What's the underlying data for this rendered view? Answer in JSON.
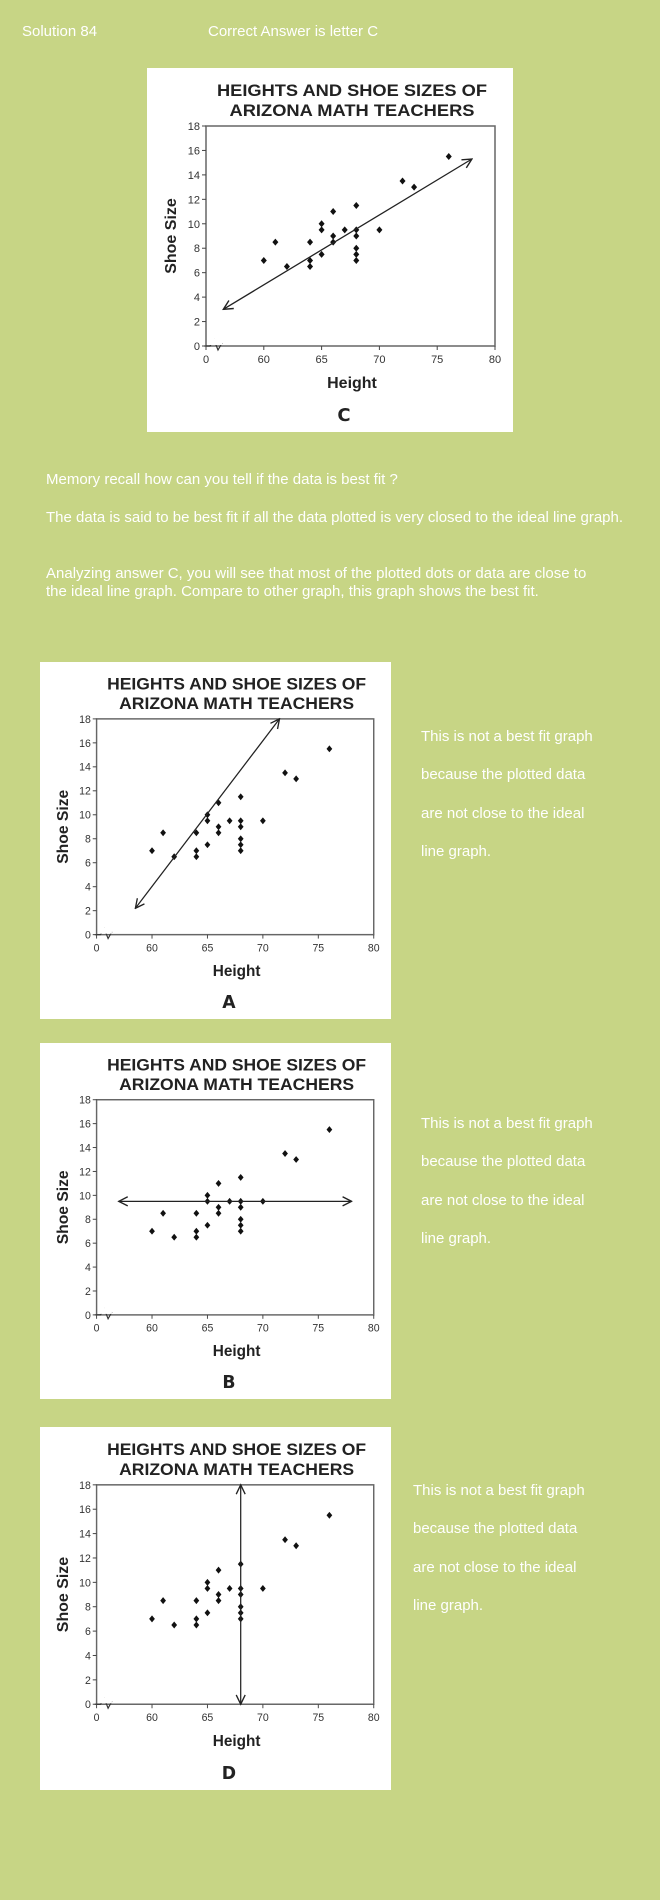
{
  "header": {
    "solution": "Solution  84",
    "answer": "Correct Answer is letter C"
  },
  "explanation": {
    "question": "Memory recall how can you tell if the data is best fit ?",
    "definition": "The data is said to be best fit if all the data plotted is very closed to the ideal line graph.",
    "analysis": "Analyzing answer C, you will see that most of the plotted dots or data are close to the ideal line graph. Compare to other graph, this graph shows the best fit."
  },
  "side_note_lines": [
    "This is not a best fit graph",
    "because the plotted data",
    "are not close to the ideal",
    "line graph."
  ],
  "chart_data": [
    {
      "id": "C",
      "type": "scatter",
      "label": "C",
      "title": [
        "HEIGHTS AND SHOE SIZES OF",
        "ARIZONA MATH TEACHERS"
      ],
      "xlabel": "Height",
      "ylabel": "Shoe Size",
      "xticks": [
        "0",
        "60",
        "65",
        "70",
        "75",
        "80"
      ],
      "yticks": [
        "0",
        "2",
        "4",
        "6",
        "8",
        "10",
        "12",
        "14",
        "16",
        "18"
      ],
      "xlim": [
        55,
        80
      ],
      "ylim": [
        0,
        18
      ],
      "x_axis_break": true,
      "points": [
        [
          60,
          7
        ],
        [
          61,
          8.5
        ],
        [
          62,
          6.5
        ],
        [
          64,
          8.5
        ],
        [
          64,
          7
        ],
        [
          64,
          6.5
        ],
        [
          65,
          10
        ],
        [
          65,
          9.5
        ],
        [
          65,
          7.5
        ],
        [
          66,
          11
        ],
        [
          66,
          9
        ],
        [
          66,
          8.5
        ],
        [
          67,
          9.5
        ],
        [
          68,
          11.5
        ],
        [
          68,
          9.5
        ],
        [
          68,
          9
        ],
        [
          68,
          8
        ],
        [
          68,
          7.5
        ],
        [
          68,
          7
        ],
        [
          70,
          9.5
        ],
        [
          72,
          13.5
        ],
        [
          73,
          13
        ],
        [
          76,
          15.5
        ]
      ],
      "fit_line": [
        [
          56.5,
          3
        ],
        [
          78,
          15.3
        ]
      ]
    },
    {
      "id": "A",
      "type": "scatter",
      "label": "A",
      "title": [
        "HEIGHTS AND SHOE SIZES OF",
        "ARIZONA MATH TEACHERS"
      ],
      "xlabel": "Height",
      "ylabel": "Shoe Size",
      "xticks": [
        "0",
        "60",
        "65",
        "70",
        "75",
        "80"
      ],
      "yticks": [
        "0",
        "2",
        "4",
        "6",
        "8",
        "10",
        "12",
        "14",
        "16",
        "18"
      ],
      "xlim": [
        55,
        80
      ],
      "ylim": [
        0,
        18
      ],
      "x_axis_break": true,
      "points": [
        [
          60,
          7
        ],
        [
          61,
          8.5
        ],
        [
          62,
          6.5
        ],
        [
          64,
          8.5
        ],
        [
          64,
          7
        ],
        [
          64,
          6.5
        ],
        [
          65,
          10
        ],
        [
          65,
          9.5
        ],
        [
          65,
          7.5
        ],
        [
          66,
          11
        ],
        [
          66,
          9
        ],
        [
          66,
          8.5
        ],
        [
          67,
          9.5
        ],
        [
          68,
          11.5
        ],
        [
          68,
          9.5
        ],
        [
          68,
          9
        ],
        [
          68,
          8
        ],
        [
          68,
          7.5
        ],
        [
          68,
          7
        ],
        [
          70,
          9.5
        ],
        [
          72,
          13.5
        ],
        [
          73,
          13
        ],
        [
          76,
          15.5
        ]
      ],
      "fit_line": [
        [
          58.5,
          2.2
        ],
        [
          71.5,
          18
        ]
      ],
      "note": "side_note_lines"
    },
    {
      "id": "B",
      "type": "scatter",
      "label": "B",
      "title": [
        "HEIGHTS AND SHOE SIZES OF",
        "ARIZONA MATH TEACHERS"
      ],
      "xlabel": "Height",
      "ylabel": "Shoe Size",
      "xticks": [
        "0",
        "60",
        "65",
        "70",
        "75",
        "80"
      ],
      "yticks": [
        "0",
        "2",
        "4",
        "6",
        "8",
        "10",
        "12",
        "14",
        "16",
        "18"
      ],
      "xlim": [
        55,
        80
      ],
      "ylim": [
        0,
        18
      ],
      "x_axis_break": true,
      "points": [
        [
          60,
          7
        ],
        [
          61,
          8.5
        ],
        [
          62,
          6.5
        ],
        [
          64,
          8.5
        ],
        [
          64,
          7
        ],
        [
          64,
          6.5
        ],
        [
          65,
          10
        ],
        [
          65,
          9.5
        ],
        [
          65,
          7.5
        ],
        [
          66,
          11
        ],
        [
          66,
          9
        ],
        [
          66,
          8.5
        ],
        [
          67,
          9.5
        ],
        [
          68,
          11.5
        ],
        [
          68,
          9.5
        ],
        [
          68,
          9
        ],
        [
          68,
          8
        ],
        [
          68,
          7.5
        ],
        [
          68,
          7
        ],
        [
          70,
          9.5
        ],
        [
          72,
          13.5
        ],
        [
          73,
          13
        ],
        [
          76,
          15.5
        ]
      ],
      "fit_line": [
        [
          57,
          9.5
        ],
        [
          78,
          9.5
        ]
      ]
    },
    {
      "id": "D",
      "type": "scatter",
      "label": "D",
      "title": [
        "HEIGHTS AND SHOE SIZES OF",
        "ARIZONA MATH TEACHERS"
      ],
      "xlabel": "Height",
      "ylabel": "Shoe Size",
      "xticks": [
        "0",
        "60",
        "65",
        "70",
        "75",
        "80"
      ],
      "yticks": [
        "0",
        "2",
        "4",
        "6",
        "8",
        "10",
        "12",
        "14",
        "16",
        "18"
      ],
      "xlim": [
        55,
        80
      ],
      "ylim": [
        0,
        18
      ],
      "x_axis_break": true,
      "points": [
        [
          60,
          7
        ],
        [
          61,
          8.5
        ],
        [
          62,
          6.5
        ],
        [
          64,
          8.5
        ],
        [
          64,
          7
        ],
        [
          64,
          6.5
        ],
        [
          65,
          10
        ],
        [
          65,
          9.5
        ],
        [
          65,
          7.5
        ],
        [
          66,
          11
        ],
        [
          66,
          9
        ],
        [
          66,
          8.5
        ],
        [
          67,
          9.5
        ],
        [
          68,
          11.5
        ],
        [
          68,
          9.5
        ],
        [
          68,
          9
        ],
        [
          68,
          8
        ],
        [
          68,
          7.5
        ],
        [
          68,
          7
        ],
        [
          70,
          9.5
        ],
        [
          72,
          13.5
        ],
        [
          73,
          13
        ],
        [
          76,
          15.5
        ]
      ],
      "fit_line": [
        [
          68,
          0
        ],
        [
          68,
          18
        ]
      ]
    }
  ]
}
